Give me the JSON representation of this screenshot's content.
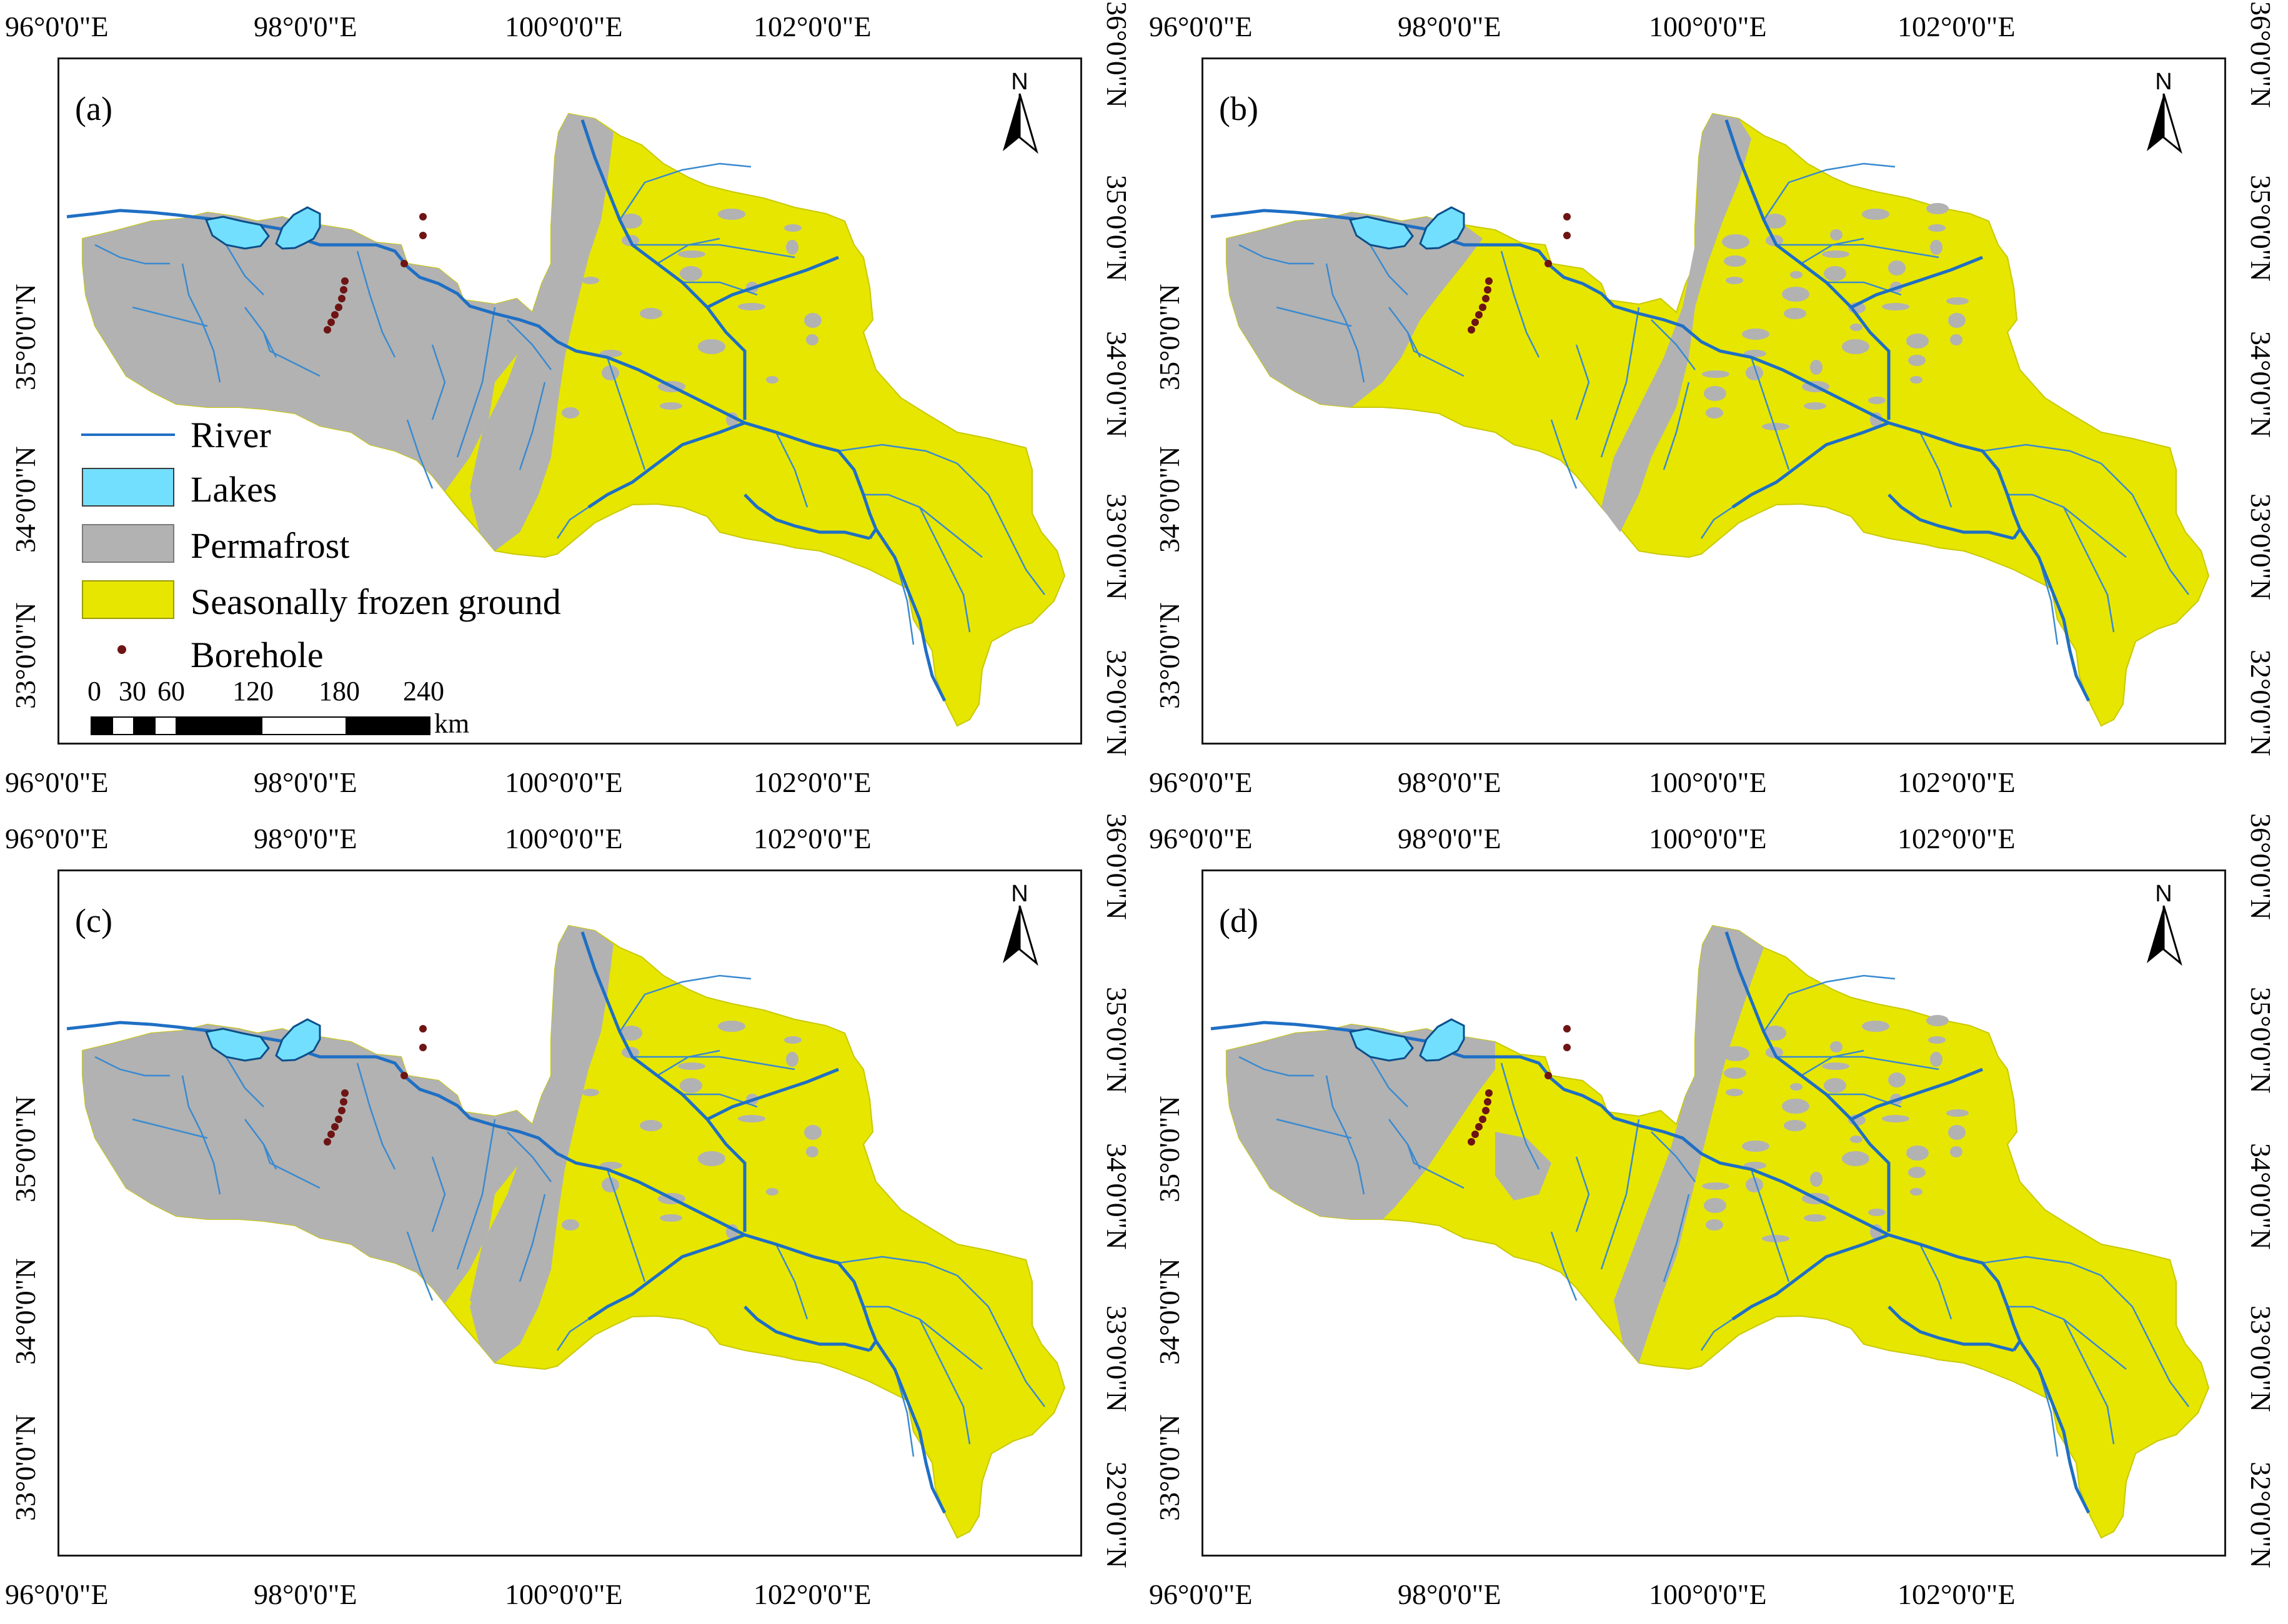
{
  "colors": {
    "permafrost": "#b2b2b2",
    "seasonally_frozen": "#e6e600",
    "lakes": "#73dfff",
    "river": "#1f6fc4",
    "borehole": "#6e1414",
    "frame": "#1a1a1a"
  },
  "axes": {
    "top_lon": [
      "96°0'0\"E",
      "98°0'0\"E",
      "100°0'0\"E",
      "102°0'0\"E"
    ],
    "bottom_lon": [
      "96°0'0\"E",
      "98°0'0\"E",
      "100°0'0\"E",
      "102°0'0\"E"
    ],
    "left_lat": [
      "35°0'0\"N",
      "34°0'0\"N",
      "33°0'0\"N"
    ],
    "right_lat": [
      "36°0'0\"N",
      "35°0'0\"N",
      "34°0'0\"N",
      "33°0'0\"N",
      "32°0'0\"N"
    ]
  },
  "north_arrow": {
    "letter": "N",
    "icon": "north-arrow-icon"
  },
  "panels": [
    {
      "id": "a",
      "label": "(a)"
    },
    {
      "id": "b",
      "label": "(b)"
    },
    {
      "id": "c",
      "label": "(c)"
    },
    {
      "id": "d",
      "label": "(d)"
    }
  ],
  "legend": {
    "items": [
      {
        "label": "River",
        "symbol": "line"
      },
      {
        "label": "Lakes",
        "symbol": "box"
      },
      {
        "label": "Permafrost",
        "symbol": "box"
      },
      {
        "label": "Seasonally frozen ground",
        "symbol": "box"
      },
      {
        "label": "Borehole",
        "symbol": "dot"
      }
    ]
  },
  "scale_bar": {
    "ticks": [
      "0",
      "30",
      "60",
      "120",
      "180",
      "240"
    ],
    "unit": "km"
  }
}
